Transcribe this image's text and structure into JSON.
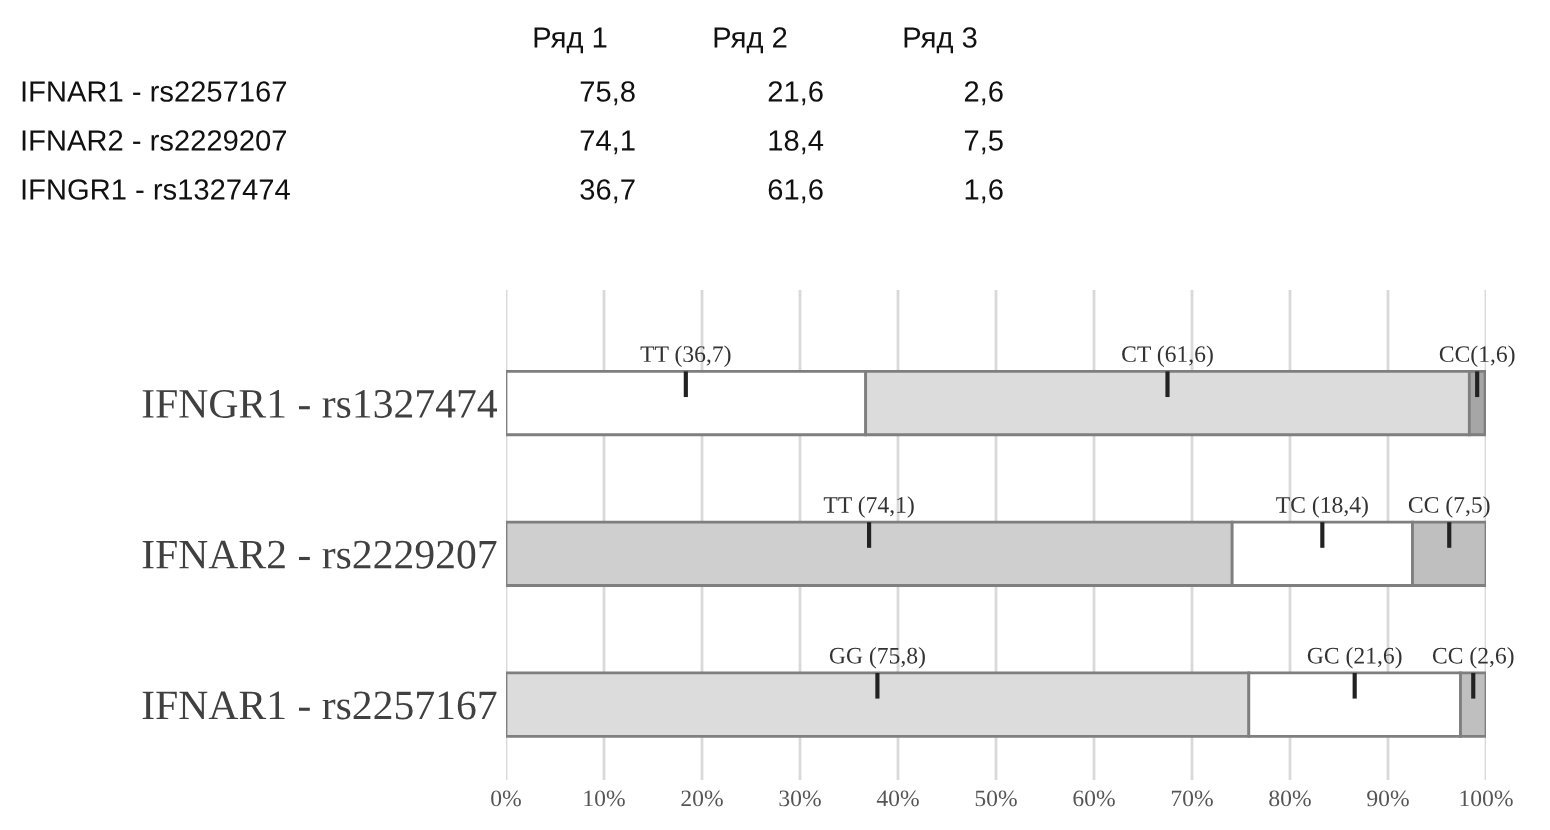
{
  "chart_data": [
    {
      "type": "other",
      "categories": [
        "Ряд 1",
        "Ряд 2",
        "Ряд 3"
      ],
      "y_categories": [
        "IFNAR1 - rs2257167",
        "IFNAR2 - rs2229207",
        "IFNGR1 - rs1327474"
      ],
      "cell_labels": [
        [
          "75,8",
          "21,6",
          "2,6"
        ],
        [
          "74,1",
          "18,4",
          "7,5"
        ],
        [
          "36,7",
          "61,6",
          "1,6"
        ]
      ]
    },
    {
      "type": "bar",
      "orientation": "horizontal",
      "stacked": true,
      "categories": [
        "IFNGR1 - rs1327474",
        "IFNAR2 - rs2229207",
        "IFNAR1 - rs2257167"
      ],
      "series": [
        {
          "colors": [
            "#ffffff",
            "#cfcfcf",
            "#dcdcdc"
          ],
          "values": [
            36.7,
            74.1,
            75.8
          ],
          "value_labels": [
            "TT (36,7)",
            "TT (74,1)",
            "GG (75,8)"
          ]
        },
        {
          "colors": [
            "#dcdcdc",
            "#ffffff",
            "#ffffff"
          ],
          "values": [
            61.6,
            18.4,
            21.6
          ],
          "value_labels": [
            "CT (61,6)",
            "TC (18,4)",
            "GC (21,6)"
          ]
        },
        {
          "colors": [
            "#a6a6a6",
            "#bfbfbf",
            "#bfbfbf"
          ],
          "values": [
            1.6,
            7.5,
            2.6
          ],
          "value_labels": [
            "CC(1,6)",
            "CC (7,5)",
            "CC (2,6)"
          ]
        }
      ],
      "xlim": [
        0,
        100
      ],
      "xticks": [
        {
          "value": 0,
          "label": "0%"
        },
        {
          "value": 10,
          "label": "10%"
        },
        {
          "value": 20,
          "label": "20%"
        },
        {
          "value": 30,
          "label": "30%"
        },
        {
          "value": 40,
          "label": "40%"
        },
        {
          "value": 50,
          "label": "50%"
        },
        {
          "value": 60,
          "label": "60%"
        },
        {
          "value": 70,
          "label": "70%"
        },
        {
          "value": 80,
          "label": "80%"
        },
        {
          "value": 90,
          "label": "90%"
        },
        {
          "value": 100,
          "label": "100%"
        }
      ],
      "grid": "x",
      "legend": false
    }
  ]
}
